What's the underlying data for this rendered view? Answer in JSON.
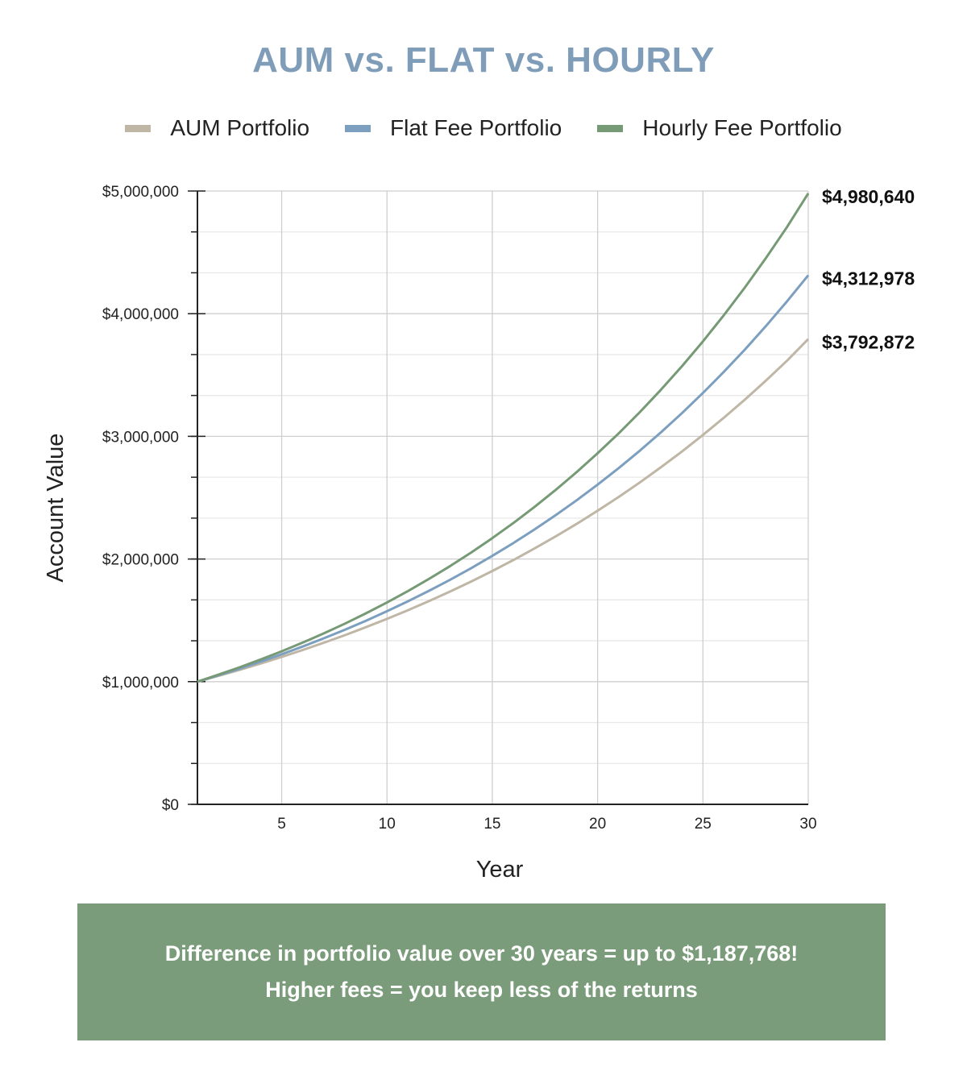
{
  "chart_data": {
    "type": "line",
    "title": "AUM vs. FLAT vs. HOURLY",
    "xlabel": "Year",
    "ylabel": "Account Value",
    "xlim": [
      1,
      30
    ],
    "ylim": [
      0,
      5000000
    ],
    "x_ticks": [
      "5",
      "10",
      "15",
      "20",
      "25",
      "30"
    ],
    "y_ticks": [
      "$0",
      "$1,000,000",
      "$2,000,000",
      "$3,000,000",
      "$4,000,000",
      "$5,000,000"
    ],
    "grid": true,
    "legend_position": "top",
    "x": [
      1,
      2,
      3,
      4,
      5,
      6,
      7,
      8,
      9,
      10,
      11,
      12,
      13,
      14,
      15,
      16,
      17,
      18,
      19,
      20,
      21,
      22,
      23,
      24,
      25,
      26,
      27,
      28,
      29,
      30
    ],
    "series": [
      {
        "name": "AUM Portfolio",
        "color": "#bfb6a6",
        "end_label": "$3,792,872",
        "values": [
          1000000,
          1047000,
          1096200,
          1147700,
          1201700,
          1258200,
          1317300,
          1379200,
          1444000,
          1511900,
          1583000,
          1657400,
          1735300,
          1816800,
          1902200,
          1991600,
          2085200,
          2183200,
          2285800,
          2393300,
          2505800,
          2623500,
          2746800,
          2876000,
          3011100,
          3152700,
          3300800,
          3456000,
          3618400,
          3792872
        ]
      },
      {
        "name": "Flat Fee Portfolio",
        "color": "#7c9fbf",
        "end_label": "$4,312,978",
        "values": [
          1000000,
          1051700,
          1106100,
          1163300,
          1223400,
          1286700,
          1353200,
          1423200,
          1496800,
          1574200,
          1655600,
          1741200,
          1831200,
          1925900,
          2025500,
          2130200,
          2240400,
          2356200,
          2478000,
          2606200,
          2740900,
          2882700,
          3031700,
          3188500,
          3353400,
          3526800,
          3709100,
          3900900,
          4102600,
          4312978
        ]
      },
      {
        "name": "Hourly Fee Portfolio",
        "color": "#769a75",
        "end_label": "$4,980,640",
        "values": [
          1000000,
          1056900,
          1117000,
          1180600,
          1247800,
          1318800,
          1393800,
          1473100,
          1556900,
          1645500,
          1739100,
          1838100,
          1942700,
          2053200,
          2170000,
          2293500,
          2424000,
          2561900,
          2707700,
          2861800,
          3024600,
          3196700,
          3378600,
          3570800,
          3774000,
          3988700,
          4215700,
          4455600,
          4709100,
          4980640
        ]
      }
    ]
  },
  "banner": {
    "line1": "Difference in portfolio value over 30 years = up to $1,187,768!",
    "line2": "Higher fees = you keep less of the returns",
    "color": "#7b9c7b"
  }
}
